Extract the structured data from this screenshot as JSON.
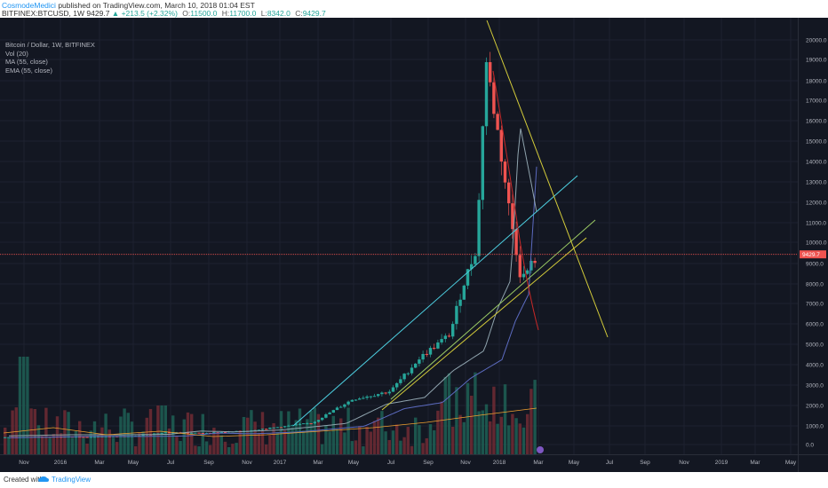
{
  "header": {
    "author": "CosmodeMedici",
    "published_text": "published on TradingView.com, March 10, 2018 01:04 EST",
    "symbol": "BITFINEX:BTCUSD, 1W",
    "last": "9429.7",
    "change": "▲ +213.5 (+2.32%)",
    "open_label": "O:",
    "open": "11500.0",
    "high_label": "H:",
    "high": "11700.0",
    "low_label": "L:",
    "low": "8342.0",
    "close_label": "C:",
    "close": "9429.7"
  },
  "legend": {
    "title": "Bitcoin / Dollar, 1W, BITFINEX",
    "vol": "Vol (20)",
    "ma": "MA (55, close)",
    "ema": "EMA (55, close)"
  },
  "footer": {
    "created_with": "Created with",
    "brand": "TradingView"
  },
  "colors": {
    "background": "#131722",
    "up": "#26a69a",
    "down": "#ef5350",
    "cyan_line": "#4dd0e1",
    "green_line": "#9ccc65",
    "yellow_line": "#d4cc3a",
    "orange_line": "#f0a030",
    "ma_line": "#5c6bc0",
    "ema_line": "#90a4ae",
    "red_line": "#c62828",
    "price_line": "#ef5350"
  },
  "price_label": "9429.7",
  "chart_data": {
    "type": "candlestick",
    "title": "Bitcoin / Dollar, 1W, BITFINEX",
    "y_scale": "log",
    "y_ticks": [
      "0.0",
      "1000.0",
      "2000.0",
      "3000.0",
      "4000.0",
      "5000.0",
      "6000.0",
      "7000.0",
      "8000.0",
      "9000.0",
      "10000.0",
      "11000.0",
      "12000.0",
      "13000.0",
      "14000.0",
      "15000.0",
      "16000.0",
      "17000.0",
      "18000.0",
      "19000.0",
      "20000.0"
    ],
    "x_ticks": [
      "Nov",
      "2016",
      "Mar",
      "May",
      "Jul",
      "Sep",
      "Nov",
      "2017",
      "Mar",
      "May",
      "Jul",
      "Sep",
      "Nov",
      "2018",
      "Mar",
      "May",
      "Jul",
      "Sep",
      "Nov",
      "2019",
      "Mar",
      "May"
    ],
    "last_price": 9429.7,
    "series_approx_close": [
      {
        "date": "2015-11",
        "close": 380
      },
      {
        "date": "2016-01",
        "close": 420
      },
      {
        "date": "2016-03",
        "close": 415
      },
      {
        "date": "2016-05",
        "close": 450
      },
      {
        "date": "2016-07",
        "close": 660
      },
      {
        "date": "2016-09",
        "close": 610
      },
      {
        "date": "2016-11",
        "close": 730
      },
      {
        "date": "2017-01",
        "close": 960
      },
      {
        "date": "2017-03",
        "close": 1150
      },
      {
        "date": "2017-05",
        "close": 2300
      },
      {
        "date": "2017-07",
        "close": 2700
      },
      {
        "date": "2017-09",
        "close": 4300
      },
      {
        "date": "2017-11",
        "close": 9800
      },
      {
        "date": "2017-12",
        "close": 19100
      },
      {
        "date": "2018-01",
        "close": 11500
      },
      {
        "date": "2018-02",
        "close": 8200
      },
      {
        "date": "2018-03",
        "close": 9429.7
      }
    ]
  }
}
